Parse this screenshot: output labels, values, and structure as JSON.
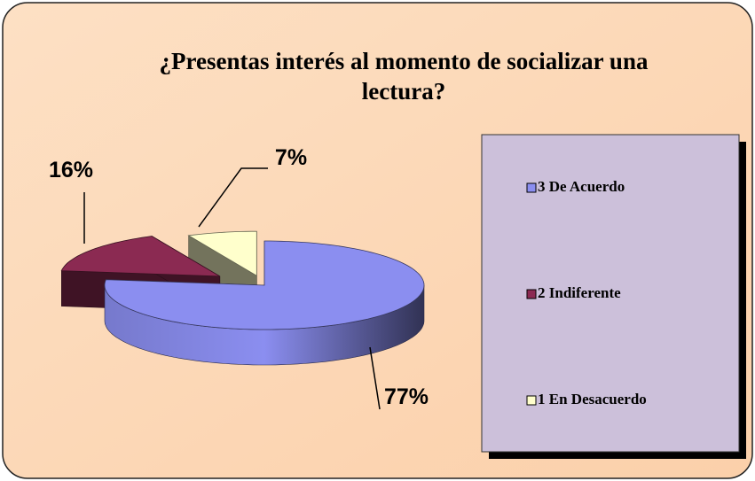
{
  "chart_data": {
    "type": "pie3d",
    "title": "¿Presentas interés al momento de socializar una lectura?",
    "categories": [
      "3 De Acuerdo",
      "2 Indiferente",
      "1 En Desacuerdo"
    ],
    "values": [
      77,
      16,
      7
    ],
    "value_labels": [
      "77%",
      "16%",
      "7%"
    ],
    "colors": [
      "#8b8ef0",
      "#8b2a52",
      "#ffffcc"
    ],
    "legend": "right"
  }
}
